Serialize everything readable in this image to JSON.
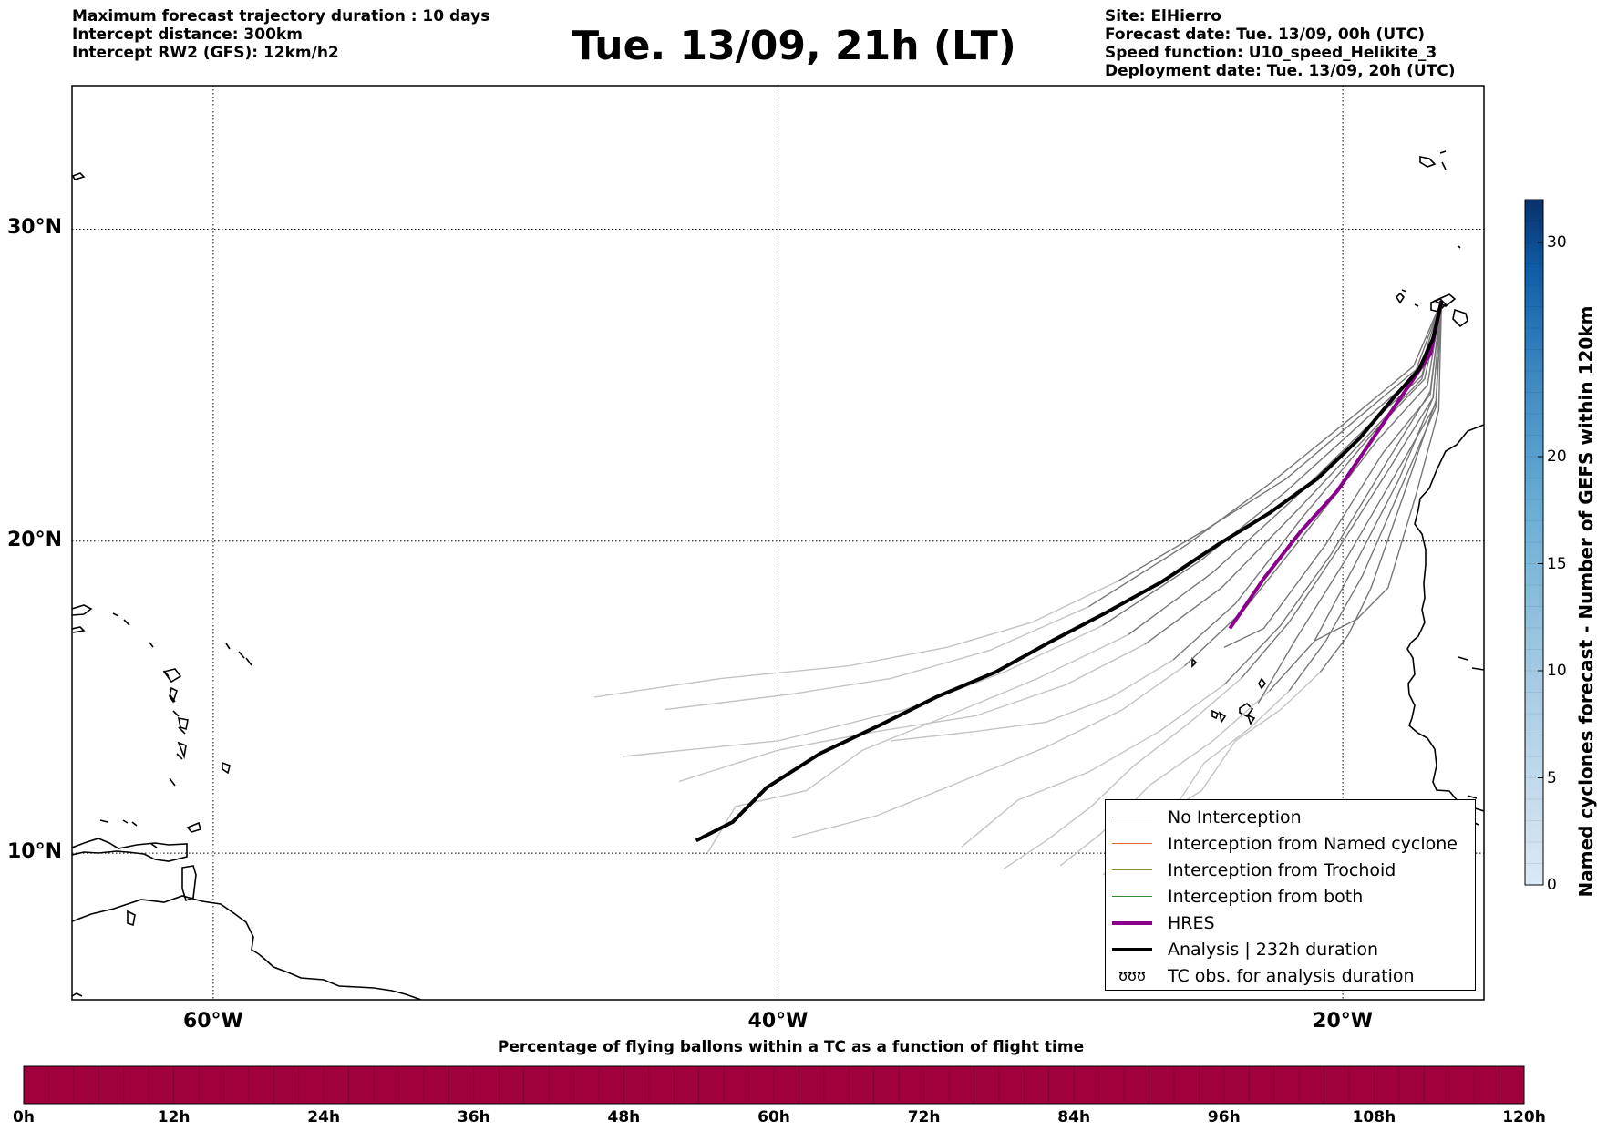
{
  "header": {
    "left_lines": [
      "Maximum forecast trajectory duration : 10 days",
      "Intercept distance: 300km",
      "Intercept RW2 (GFS):  12km/h2"
    ],
    "title": "Tue. 13/09, 21h (LT)",
    "right_lines": [
      "Site: ElHierro",
      "Forecast date: Tue. 13/09, 00h (UTC)",
      "Speed function: U10_speed_Helikite_3",
      "Deployment date: Tue. 13/09, 20h (UTC)"
    ]
  },
  "map": {
    "lon_range": [
      -65,
      -15
    ],
    "lat_range": [
      5.3,
      34.6
    ],
    "lat_ticks": [
      {
        "value": 30,
        "label": "30°N"
      },
      {
        "value": 20,
        "label": "20°N"
      },
      {
        "value": 10,
        "label": "10°N"
      }
    ],
    "lon_ticks": [
      {
        "value": -60,
        "label": "60°W"
      },
      {
        "value": -40,
        "label": "40°W"
      },
      {
        "value": -20,
        "label": "20°W"
      }
    ],
    "colors": {
      "no_interception": "#777777",
      "named_cyclone": "#e8622a",
      "trochoid": "#8a8a2a",
      "both": "#2e8b2e",
      "hres": "#8b008b",
      "analysis": "#000000",
      "early_trajectory": "#c4c4c4"
    }
  },
  "legend": {
    "items": [
      {
        "label": "No Interception",
        "color": "#777777",
        "style": "thin"
      },
      {
        "label": "Interception from Named cyclone",
        "color": "#e8622a",
        "style": "thin"
      },
      {
        "label": "Interception from Trochoid",
        "color": "#8a8a2a",
        "style": "thin"
      },
      {
        "label": "Interception from both",
        "color": "#2e8b2e",
        "style": "thin"
      },
      {
        "label": "HRES",
        "color": "#8b008b",
        "style": "thick"
      },
      {
        "label": "Analysis | 232h duration",
        "color": "#000000",
        "style": "thick"
      },
      {
        "label": "TC obs. for analysis duration",
        "glyph": "ʊʊʊ",
        "style": "glyph"
      }
    ]
  },
  "colorbar": {
    "label": "Named cyclones forecast - Number of GEFS within 120km",
    "ticks": [
      0,
      5,
      10,
      15,
      20,
      30
    ],
    "range": [
      0,
      32
    ]
  },
  "pct_bar": {
    "title": "Percentage of flying ballons within a TC as a function of flight time",
    "color": "#a0003c",
    "ticks": [
      "0h",
      "12h",
      "24h",
      "36h",
      "48h",
      "60h",
      "72h",
      "84h",
      "96h",
      "108h",
      "120h"
    ]
  },
  "chart_data": {
    "type": "map-trajectories",
    "origin": {
      "lon": -16.5,
      "lat": 27.7
    },
    "analysis_track": [
      [
        -16.5,
        27.7
      ],
      [
        -16.8,
        26.5
      ],
      [
        -17.3,
        25.5
      ],
      [
        -18.2,
        24.6
      ],
      [
        -19.4,
        23.3
      ],
      [
        -20.9,
        22.0
      ],
      [
        -22.6,
        20.9
      ],
      [
        -24.4,
        19.9
      ],
      [
        -26.4,
        18.7
      ],
      [
        -28.4,
        17.7
      ],
      [
        -30.3,
        16.8
      ],
      [
        -32.3,
        15.8
      ],
      [
        -34.4,
        15.0
      ],
      [
        -36.4,
        14.1
      ],
      [
        -38.5,
        13.2
      ],
      [
        -40.4,
        12.1
      ],
      [
        -41.6,
        11.0
      ],
      [
        -42.9,
        10.4
      ]
    ],
    "hres_track": [
      [
        -16.5,
        27.7
      ],
      [
        -16.9,
        26.0
      ],
      [
        -17.8,
        24.8
      ],
      [
        -19.0,
        23.2
      ],
      [
        -20.2,
        21.6
      ],
      [
        -21.5,
        20.3
      ],
      [
        -22.8,
        18.8
      ],
      [
        -24.0,
        17.2
      ]
    ],
    "gefs_tracks": [
      [
        [
          -16.5,
          27.7
        ],
        [
          -17.5,
          25.6
        ],
        [
          -19.5,
          24.1
        ],
        [
          -22.5,
          21.9
        ],
        [
          -25.5,
          19.9
        ],
        [
          -29.0,
          17.9
        ],
        [
          -32.5,
          16.5
        ],
        [
          -36.0,
          15.6
        ],
        [
          -39.5,
          15.1
        ],
        [
          -44.0,
          14.6
        ]
      ],
      [
        [
          -16.5,
          27.7
        ],
        [
          -17.3,
          25.4
        ],
        [
          -19.2,
          23.9
        ],
        [
          -22.0,
          21.6
        ],
        [
          -25.0,
          19.4
        ],
        [
          -28.5,
          17.3
        ],
        [
          -32.0,
          15.8
        ],
        [
          -35.5,
          14.6
        ],
        [
          -40.0,
          13.6
        ],
        [
          -45.5,
          13.1
        ]
      ],
      [
        [
          -16.5,
          27.7
        ],
        [
          -17.2,
          25.2
        ],
        [
          -19.0,
          23.5
        ],
        [
          -21.6,
          21.0
        ],
        [
          -24.3,
          18.5
        ],
        [
          -27.0,
          16.7
        ],
        [
          -29.8,
          15.4
        ],
        [
          -33.0,
          14.4
        ],
        [
          -36.5,
          13.9
        ],
        [
          -40.0,
          13.3
        ],
        [
          -43.5,
          12.3
        ]
      ],
      [
        [
          -16.5,
          27.7
        ],
        [
          -17.0,
          25.0
        ],
        [
          -18.8,
          23.2
        ],
        [
          -21.2,
          20.4
        ],
        [
          -23.5,
          17.8
        ],
        [
          -25.6,
          16.0
        ],
        [
          -27.8,
          14.6
        ],
        [
          -30.5,
          13.4
        ],
        [
          -33.5,
          12.3
        ],
        [
          -36.5,
          11.2
        ],
        [
          -39.5,
          10.5
        ]
      ],
      [
        [
          -16.5,
          27.7
        ],
        [
          -16.9,
          24.8
        ],
        [
          -18.4,
          22.6
        ],
        [
          -20.4,
          19.6
        ],
        [
          -22.2,
          17.3
        ],
        [
          -24.2,
          15.4
        ],
        [
          -26.5,
          13.9
        ],
        [
          -29.0,
          12.6
        ],
        [
          -31.5,
          11.7
        ],
        [
          -33.5,
          10.2
        ]
      ],
      [
        [
          -16.5,
          27.7
        ],
        [
          -16.8,
          24.6
        ],
        [
          -18.0,
          22.0
        ],
        [
          -19.6,
          19.2
        ],
        [
          -21.0,
          16.8
        ],
        [
          -22.6,
          15.2
        ],
        [
          -24.6,
          13.6
        ],
        [
          -26.8,
          12.2
        ],
        [
          -28.6,
          10.6
        ],
        [
          -30.0,
          9.6
        ]
      ],
      [
        [
          -16.5,
          27.7
        ],
        [
          -16.7,
          24.5
        ],
        [
          -17.8,
          21.6
        ],
        [
          -19.0,
          18.5
        ],
        [
          -19.8,
          17.0
        ],
        [
          -20.8,
          15.8
        ],
        [
          -22.2,
          14.6
        ],
        [
          -23.8,
          13.6
        ],
        [
          -25.0,
          12.0
        ],
        [
          -26.8,
          11.0
        ],
        [
          -28.0,
          9.7
        ]
      ],
      [
        [
          -16.5,
          27.7
        ],
        [
          -17.1,
          25.2
        ],
        [
          -18.9,
          23.5
        ],
        [
          -21.4,
          20.8
        ],
        [
          -23.8,
          18.0
        ],
        [
          -26.0,
          16.2
        ],
        [
          -28.2,
          15.0
        ],
        [
          -30.5,
          14.2
        ],
        [
          -33.0,
          13.9
        ],
        [
          -36.0,
          13.6
        ]
      ],
      [
        [
          -16.5,
          27.7
        ],
        [
          -16.6,
          24.2
        ],
        [
          -17.4,
          21.5
        ],
        [
          -18.4,
          18.5
        ],
        [
          -19.5,
          17.5
        ],
        [
          -21.0,
          16.8
        ]
      ],
      [
        [
          -16.5,
          27.7
        ],
        [
          -16.9,
          24.7
        ],
        [
          -18.6,
          22.8
        ],
        [
          -20.6,
          19.9
        ],
        [
          -22.8,
          17.2
        ],
        [
          -24.2,
          16.6
        ]
      ],
      [
        [
          -16.5,
          27.7
        ],
        [
          -16.7,
          24.4
        ],
        [
          -18.1,
          22.2
        ],
        [
          -19.9,
          19.4
        ],
        [
          -21.7,
          16.8
        ],
        [
          -23.0,
          14.8
        ]
      ],
      [
        [
          -16.5,
          27.7
        ],
        [
          -17.4,
          25.5
        ],
        [
          -19.4,
          24.0
        ],
        [
          -22.0,
          22.0
        ],
        [
          -24.8,
          20.4
        ],
        [
          -28.0,
          18.7
        ],
        [
          -31.0,
          17.4
        ],
        [
          -34.0,
          16.6
        ],
        [
          -37.5,
          16.0
        ],
        [
          -42.0,
          15.6
        ],
        [
          -46.5,
          15.0
        ]
      ],
      [
        [
          -16.5,
          27.7
        ],
        [
          -17.2,
          25.3
        ],
        [
          -19.1,
          23.7
        ],
        [
          -21.8,
          21.3
        ],
        [
          -24.6,
          19.0
        ],
        [
          -27.6,
          17.0
        ],
        [
          -30.8,
          15.6
        ],
        [
          -34.0,
          14.4
        ],
        [
          -37.0,
          13.3
        ],
        [
          -39.0,
          12.0
        ],
        [
          -41.5,
          11.5
        ],
        [
          -42.5,
          10.0
        ]
      ],
      [
        [
          -16.5,
          27.7
        ],
        [
          -16.8,
          24.6
        ],
        [
          -18.3,
          22.4
        ],
        [
          -20.2,
          19.7
        ],
        [
          -21.9,
          17.4
        ],
        [
          -23.6,
          15.6
        ],
        [
          -25.4,
          14.2
        ],
        [
          -27.4,
          12.8
        ],
        [
          -28.9,
          11.5
        ],
        [
          -30.5,
          10.4
        ],
        [
          -32.0,
          9.5
        ]
      ],
      [
        [
          -16.5,
          27.7
        ],
        [
          -16.7,
          24.3
        ],
        [
          -17.9,
          21.8
        ],
        [
          -19.3,
          18.9
        ],
        [
          -20.6,
          16.8
        ],
        [
          -21.9,
          15.2
        ],
        [
          -23.3,
          14.0
        ],
        [
          -24.9,
          12.9
        ],
        [
          -26.0,
          11.4
        ],
        [
          -27.2,
          10.3
        ],
        [
          -28.5,
          9.3
        ]
      ]
    ]
  }
}
